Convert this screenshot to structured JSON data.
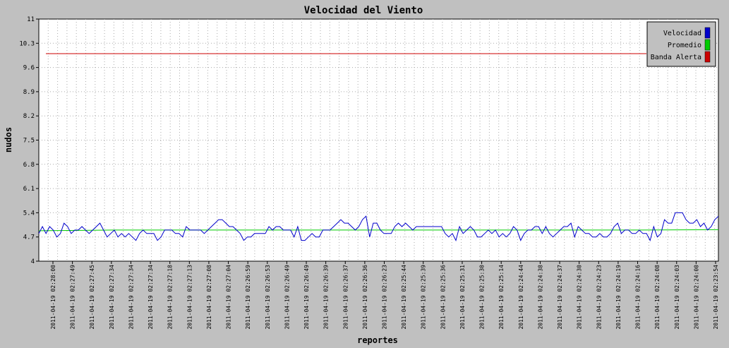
{
  "chart_data": {
    "type": "line",
    "title": "Velocidad del Viento",
    "xlabel": "reportes",
    "ylabel": "nudos",
    "ylim": [
      4,
      11
    ],
    "yticks": [
      "4",
      "4.7",
      "5.4",
      "6.1",
      "6.8",
      "7.5",
      "8.2",
      "8.9",
      "9.6",
      "10.3",
      "11"
    ],
    "grid": true,
    "legend_position": "top-right",
    "x_tick_labels": [
      "2011-04-19 02:28:00",
      "2011-04-19 02:27:49",
      "2011-04-19 02:27:45",
      "2011-04-19 02:27:34",
      "2011-04-19 02:27:34",
      "2011-04-19 02:27:34",
      "2011-04-19 02:27:18",
      "2011-04-19 02:27:13",
      "2011-04-19 02:27:08",
      "2011-04-19 02:27:04",
      "2011-04-19 02:26:59",
      "2011-04-19 02:26:53",
      "2011-04-19 02:26:49",
      "2011-04-19 02:26:49",
      "2011-04-19 02:26:39",
      "2011-04-19 02:26:37",
      "2011-04-19 02:26:36",
      "2011-04-19 02:26:23",
      "2011-04-19 02:25:44",
      "2011-04-19 02:25:39",
      "2011-04-19 02:25:36",
      "2011-04-19 02:25:31",
      "2011-04-19 02:25:30",
      "2011-04-19 02:25:14",
      "2011-04-19 02:24:44",
      "2011-04-19 02:24:38",
      "2011-04-19 02:24:37",
      "2011-04-19 02:24:30",
      "2011-04-19 02:24:23",
      "2011-04-19 02:24:19",
      "2011-04-19 02:24:16",
      "2011-04-19 02:24:08",
      "2011-04-19 02:24:03",
      "2011-04-19 02:24:00",
      "2011-04-19 02:23:54"
    ],
    "series": [
      {
        "name": "Velocidad",
        "color": "#0000cc",
        "values": [
          4.8,
          5.0,
          4.8,
          5.0,
          4.9,
          4.7,
          4.8,
          5.1,
          5.0,
          4.8,
          4.9,
          4.9,
          5.0,
          4.9,
          4.8,
          4.9,
          5.0,
          5.1,
          4.9,
          4.7,
          4.8,
          4.9,
          4.7,
          4.8,
          4.7,
          4.8,
          4.7,
          4.6,
          4.8,
          4.9,
          4.8,
          4.8,
          4.8,
          4.6,
          4.7,
          4.9,
          4.9,
          4.9,
          4.8,
          4.8,
          4.7,
          5.0,
          4.9,
          4.9,
          4.9,
          4.9,
          4.8,
          4.9,
          5.0,
          5.1,
          5.2,
          5.2,
          5.1,
          5.0,
          5.0,
          4.9,
          4.8,
          4.6,
          4.7,
          4.7,
          4.8,
          4.8,
          4.8,
          4.8,
          5.0,
          4.9,
          5.0,
          5.0,
          4.9,
          4.9,
          4.9,
          4.7,
          5.0,
          4.6,
          4.6,
          4.7,
          4.8,
          4.7,
          4.7,
          4.9,
          4.9,
          4.9,
          5.0,
          5.1,
          5.2,
          5.1,
          5.1,
          5.0,
          4.9,
          5.0,
          5.2,
          5.3,
          4.7,
          5.1,
          5.1,
          4.9,
          4.8,
          4.8,
          4.8,
          5.0,
          5.1,
          5.0,
          5.1,
          5.0,
          4.9,
          5.0,
          5.0,
          5.0,
          5.0,
          5.0,
          5.0,
          5.0,
          5.0,
          4.8,
          4.7,
          4.8,
          4.6,
          5.0,
          4.8,
          4.9,
          5.0,
          4.9,
          4.7,
          4.7,
          4.8,
          4.9,
          4.8,
          4.9,
          4.7,
          4.8,
          4.7,
          4.8,
          5.0,
          4.9,
          4.6,
          4.8,
          4.9,
          4.9,
          5.0,
          5.0,
          4.8,
          5.0,
          4.8,
          4.7,
          4.8,
          4.9,
          5.0,
          5.0,
          5.1,
          4.7,
          5.0,
          4.9,
          4.8,
          4.8,
          4.7,
          4.7,
          4.8,
          4.7,
          4.7,
          4.8,
          5.0,
          5.1,
          4.8,
          4.9,
          4.9,
          4.8,
          4.8,
          4.9,
          4.8,
          4.8,
          4.6,
          5.0,
          4.7,
          4.8,
          5.2,
          5.1,
          5.1,
          5.4,
          5.4,
          5.4,
          5.2,
          5.1,
          5.1,
          5.2,
          5.0,
          5.1,
          4.9,
          5.0,
          5.2,
          5.3
        ]
      },
      {
        "name": "Promedio",
        "color": "#00cc00",
        "values": [
          4.88,
          4.9,
          4.9,
          4.9,
          4.9,
          4.9,
          4.9,
          4.9,
          4.9,
          4.91
        ]
      },
      {
        "name": "Banda Alerta",
        "color": "#cc0000",
        "values": [
          10.0,
          10.0
        ]
      }
    ]
  }
}
